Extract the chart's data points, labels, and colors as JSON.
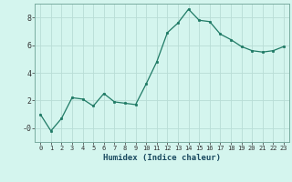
{
  "x": [
    0,
    1,
    2,
    3,
    4,
    5,
    6,
    7,
    8,
    9,
    10,
    11,
    12,
    13,
    14,
    15,
    16,
    17,
    18,
    19,
    20,
    21,
    22,
    23
  ],
  "y": [
    1.0,
    -0.2,
    0.7,
    2.2,
    2.1,
    1.6,
    2.5,
    1.9,
    1.8,
    1.7,
    3.2,
    4.8,
    6.9,
    7.6,
    8.6,
    7.8,
    7.7,
    6.8,
    6.4,
    5.9,
    5.6,
    5.5,
    5.6,
    5.9
  ],
  "line_color": "#1f7a65",
  "marker_color": "#1f7a65",
  "bg_color": "#d4f5ee",
  "grid_color": "#b8ddd6",
  "xlabel": "Humidex (Indice chaleur)",
  "ylim": [
    -1,
    9
  ],
  "xlim": [
    -0.5,
    23.5
  ],
  "yticks": [
    0,
    2,
    4,
    6,
    8
  ],
  "ytick_labels": [
    "-0",
    "2",
    "4",
    "6",
    "8"
  ],
  "xticks": [
    0,
    1,
    2,
    3,
    4,
    5,
    6,
    7,
    8,
    9,
    10,
    11,
    12,
    13,
    14,
    15,
    16,
    17,
    18,
    19,
    20,
    21,
    22,
    23
  ],
  "xtick_labels": [
    "0",
    "1",
    "2",
    "3",
    "4",
    "5",
    "6",
    "7",
    "8",
    "9",
    "10",
    "11",
    "12",
    "13",
    "14",
    "15",
    "16",
    "17",
    "18",
    "19",
    "20",
    "21",
    "22",
    "23"
  ]
}
